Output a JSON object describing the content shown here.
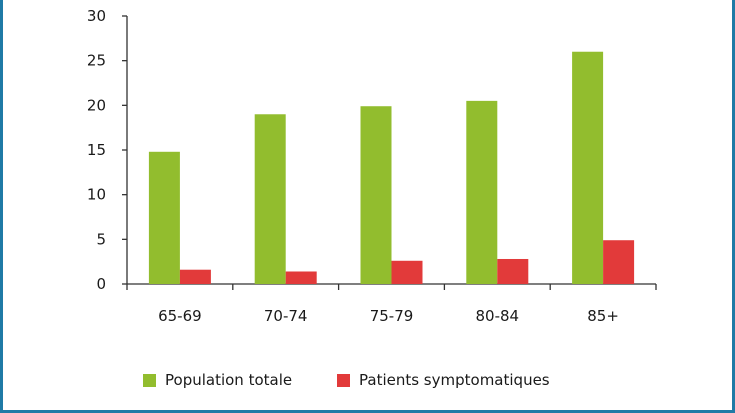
{
  "chart_data": {
    "type": "bar",
    "categories": [
      "65-69",
      "70-74",
      "75-79",
      "80-84",
      "85+"
    ],
    "series": [
      {
        "name": "Population totale",
        "color": "#92bd2e",
        "values": [
          14.8,
          19.0,
          19.9,
          20.5,
          26.0
        ]
      },
      {
        "name": "Patients symptomatiques",
        "color": "#e23a3a",
        "values": [
          1.6,
          1.4,
          2.6,
          2.8,
          4.9
        ]
      }
    ],
    "y_ticks": [
      "0",
      "5",
      "10",
      "15",
      "20",
      "25",
      "30"
    ],
    "ylim": [
      0,
      30
    ],
    "grid": false,
    "legend_position": "bottom"
  }
}
